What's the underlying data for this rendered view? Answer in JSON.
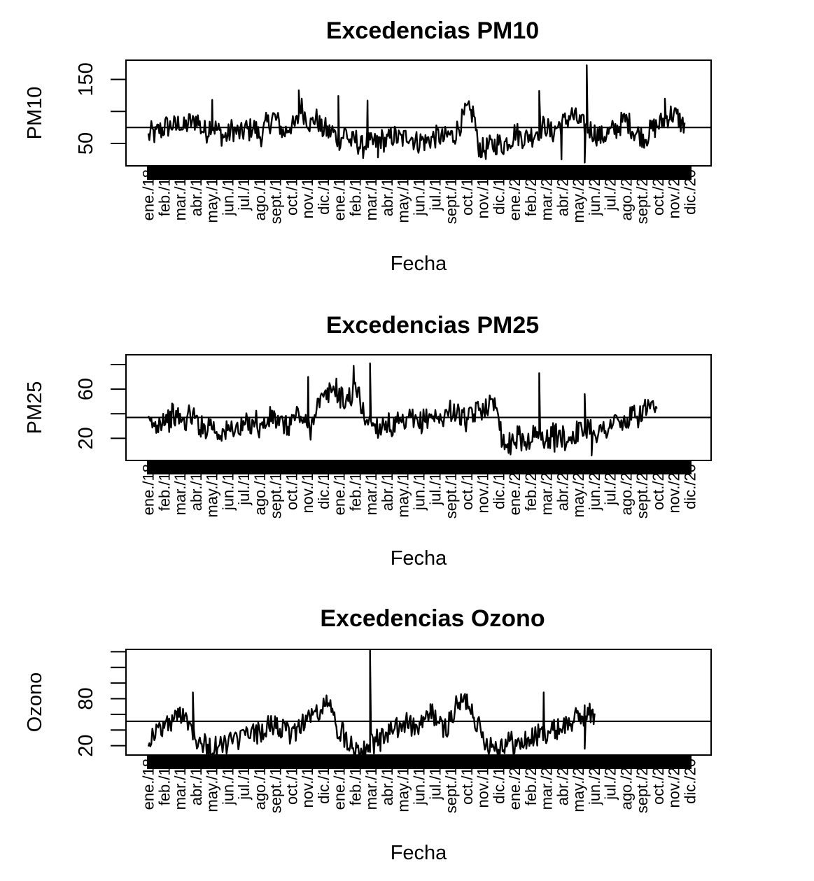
{
  "chart_data": [
    {
      "type": "line",
      "title": "Excedencias PM10",
      "xlabel": "Fecha",
      "ylabel": "PM10",
      "ylim": [
        15,
        180
      ],
      "yticks": [
        50,
        100,
        150
      ],
      "yticklabels": [
        "50",
        "",
        "150"
      ],
      "x_tick_labels": [
        "ene./18",
        "feb./18",
        "mar./18",
        "abr./18",
        "may./18",
        "jun./18",
        "jul./18",
        "ago./18",
        "sept./18",
        "oct./18",
        "nov./18",
        "dic./18",
        "ene./19",
        "feb./19",
        "mar./19",
        "abr./19",
        "may./19",
        "jun./19",
        "jul./19",
        "sept./19",
        "oct./19",
        "nov./19",
        "dic./19",
        "ene./20",
        "feb./20",
        "mar./20",
        "abr./20",
        "may./20",
        "jun./20",
        "jul./20",
        "ago./20",
        "sept./20",
        "oct./20",
        "nov./20",
        "dic./20"
      ],
      "hline": 75,
      "series": [
        {
          "x_start": "2018-01-01",
          "x_step": "1 week",
          "values": [
            60,
            68,
            62,
            72,
            70,
            78,
            75,
            80,
            74,
            85,
            72,
            78,
            84,
            80,
            92,
            75,
            70,
            68,
            82,
            76,
            70,
            64,
            60,
            62,
            72,
            70,
            66,
            64,
            74,
            68,
            78,
            72,
            62,
            64,
            80,
            82,
            92,
            86,
            78,
            64,
            72,
            80,
            74,
            84,
            110,
            96,
            88,
            78,
            90,
            86,
            70,
            74,
            66,
            70,
            62,
            56,
            60,
            70,
            54,
            52,
            56,
            46,
            44,
            54,
            48,
            50,
            52,
            58,
            54,
            52,
            60,
            62,
            58,
            56,
            58,
            66,
            60,
            54,
            52,
            56,
            52,
            56,
            58,
            60,
            62,
            56,
            60,
            64,
            60,
            70,
            80,
            90,
            102,
            96,
            98,
            50,
            42,
            40,
            44,
            46,
            48,
            52,
            46,
            50,
            56,
            58,
            70,
            62,
            60,
            58,
            64,
            62,
            70,
            72,
            76,
            78,
            66,
            68,
            76,
            80,
            82,
            88,
            96,
            90,
            86,
            80,
            76,
            74,
            70,
            66,
            62,
            60,
            64,
            66,
            70,
            72,
            78,
            84,
            86,
            80,
            70,
            66,
            64,
            60,
            62,
            70,
            74,
            78,
            82,
            88,
            92,
            96,
            94,
            90,
            80
          ],
          "peaks": [
            {
              "x": "2018-05-10",
              "y": 118
            },
            {
              "x": "2018-11-01",
              "y": 133
            },
            {
              "x": "2019-01-20",
              "y": 124
            },
            {
              "x": "2019-03-20",
              "y": 117
            },
            {
              "x": "2020-03-01",
              "y": 132
            },
            {
              "x": "2020-06-05",
              "y": 172
            },
            {
              "x": "2020-11-10",
              "y": 120
            }
          ],
          "troughs": [
            {
              "x": "2019-04-10",
              "y": 28
            },
            {
              "x": "2020-04-15",
              "y": 25
            },
            {
              "x": "2020-06-01",
              "y": 20
            }
          ]
        }
      ]
    },
    {
      "type": "line",
      "title": "Excedencias PM25",
      "xlabel": "Fecha",
      "ylabel": "PM25",
      "ylim": [
        2,
        88
      ],
      "yticks": [
        20,
        40,
        60,
        80
      ],
      "yticklabels": [
        "20",
        "",
        "60",
        ""
      ],
      "x_tick_labels": [
        "ene./18",
        "feb./18",
        "mar./18",
        "abr./18",
        "may./18",
        "jun./18",
        "jul./18",
        "ago./18",
        "sept./18",
        "oct./18",
        "nov./18",
        "dic./18",
        "ene./19",
        "feb./19",
        "mar./19",
        "abr./19",
        "may./19",
        "jun./19",
        "jul./19",
        "sept./19",
        "oct./19",
        "nov./19",
        "dic./19",
        "ene./20",
        "feb./20",
        "mar./20",
        "abr./20",
        "may./20",
        "jun./20",
        "jul./20",
        "ago./20",
        "sept./20",
        "oct./20",
        "nov./20",
        "dic./20"
      ],
      "hline": 37,
      "series": [
        {
          "x_start": "2018-01-01",
          "x_step": "1 week",
          "values": [
            30,
            32,
            29,
            34,
            36,
            38,
            34,
            40,
            36,
            38,
            32,
            35,
            40,
            38,
            34,
            30,
            28,
            30,
            34,
            28,
            24,
            26,
            24,
            26,
            28,
            30,
            26,
            28,
            32,
            30,
            34,
            36,
            28,
            30,
            32,
            36,
            38,
            34,
            30,
            32,
            28,
            34,
            36,
            40,
            38,
            32,
            30,
            28,
            44,
            48,
            50,
            52,
            56,
            60,
            62,
            55,
            52,
            50,
            54,
            56,
            60,
            54,
            40,
            36,
            34,
            32,
            30,
            28,
            34,
            32,
            30,
            28,
            32,
            30,
            30,
            34,
            36,
            32,
            30,
            34,
            36,
            38,
            40,
            36,
            34,
            38,
            40,
            42,
            44,
            40,
            38,
            36,
            34,
            36,
            40,
            42,
            44,
            46,
            48,
            46,
            50,
            48,
            20,
            16,
            14,
            18,
            20,
            22,
            18,
            16,
            20,
            22,
            24,
            20,
            22,
            18,
            20,
            24,
            22,
            22,
            20,
            18,
            22,
            24,
            26,
            24,
            28,
            30,
            28,
            26,
            24,
            26,
            28,
            30,
            32,
            34,
            32,
            30,
            34,
            36,
            38,
            36,
            40,
            42,
            46,
            44,
            40
          ],
          "peaks": [
            {
              "x": "2018-11-20",
              "y": 70
            },
            {
              "x": "2019-02-20",
              "y": 79
            },
            {
              "x": "2019-03-25",
              "y": 81
            },
            {
              "x": "2020-03-01",
              "y": 73
            },
            {
              "x": "2020-06-01",
              "y": 56
            }
          ],
          "troughs": [
            {
              "x": "2020-04-01",
              "y": 9
            },
            {
              "x": "2020-06-15",
              "y": 6
            }
          ]
        }
      ]
    },
    {
      "type": "line",
      "title": "Excedencias Ozono",
      "xlabel": "Fecha",
      "ylabel": "Ozono",
      "ylim": [
        8,
        143
      ],
      "yticks": [
        20,
        40,
        60,
        80,
        100,
        120,
        140
      ],
      "yticklabels": [
        "20",
        "",
        "",
        "80",
        "",
        "",
        ""
      ],
      "x_tick_labels": [
        "ene./18",
        "feb./18",
        "mar./18",
        "abr./18",
        "may./18",
        "jun./18",
        "jul./18",
        "ago./18",
        "sept./18",
        "oct./18",
        "nov./18",
        "dic./18",
        "ene./19",
        "feb./19",
        "mar./19",
        "abr./19",
        "may./19",
        "jun./19",
        "jul./19",
        "sept./19",
        "oct./19",
        "nov./19",
        "dic./19",
        "ene./20",
        "feb./20",
        "mar./20",
        "abr./20",
        "may./20",
        "jun./20",
        "jul./20",
        "ago./20",
        "sept./20",
        "oct./20",
        "nov./20",
        "dic./20"
      ],
      "hline": 51,
      "series": [
        {
          "x_start": "2018-01-01",
          "x_step": "1 week",
          "values": [
            28,
            32,
            36,
            40,
            44,
            48,
            46,
            52,
            56,
            60,
            64,
            58,
            46,
            40,
            30,
            26,
            22,
            20,
            18,
            16,
            18,
            20,
            22,
            24,
            26,
            24,
            28,
            30,
            32,
            34,
            36,
            34,
            38,
            40,
            42,
            44,
            46,
            48,
            42,
            38,
            36,
            34,
            38,
            42,
            48,
            52,
            56,
            58,
            60,
            62,
            66,
            70,
            80,
            60,
            48,
            40,
            36,
            30,
            26,
            22,
            18,
            16,
            18,
            20,
            22,
            24,
            26,
            28,
            32,
            36,
            40,
            38,
            42,
            46,
            48,
            52,
            44,
            40,
            44,
            48,
            52,
            56,
            60,
            58,
            46,
            40,
            44,
            52,
            60,
            70,
            74,
            76,
            78,
            72,
            60,
            48,
            36,
            28,
            24,
            22,
            20,
            18,
            22,
            24,
            26,
            24,
            22,
            20,
            24,
            26,
            28,
            30,
            32,
            34,
            36,
            38,
            40,
            38,
            42,
            44,
            46,
            48,
            50,
            52,
            56,
            58,
            60,
            62,
            58
          ],
          "peaks": [
            {
              "x": "2018-04-01",
              "y": 88
            },
            {
              "x": "2019-03-25",
              "y": 142
            },
            {
              "x": "2019-07-25",
              "y": 73
            },
            {
              "x": "2020-03-10",
              "y": 88
            }
          ],
          "troughs": [
            {
              "x": "2018-05-20",
              "y": 14
            },
            {
              "x": "2019-04-15",
              "y": 13
            },
            {
              "x": "2020-06-01",
              "y": 16
            }
          ]
        }
      ]
    }
  ]
}
